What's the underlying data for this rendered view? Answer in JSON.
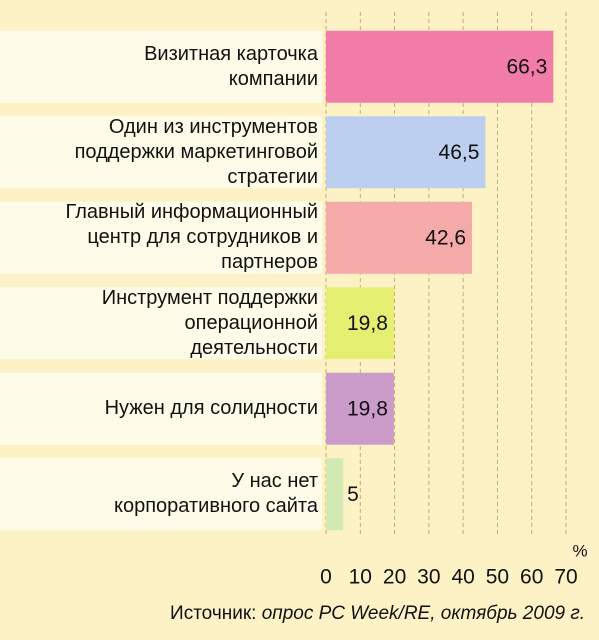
{
  "chart_data": {
    "type": "bar",
    "orientation": "horizontal",
    "categories": [
      "Визитная карточка\nкомпании",
      "Один из инструментов\nподдержки маркетинговой\nстратегии",
      "Главный информационный\nцентр для сотрудников и\nпартнеров",
      "Инструмент поддержки\nоперационной\nдеятельности",
      "Нужен для солидности",
      "У нас нет\nкорпоративного сайта"
    ],
    "values": [
      66.3,
      46.5,
      42.6,
      19.8,
      19.8,
      5
    ],
    "value_labels": [
      "66,3",
      "46,5",
      "42,6",
      "19,8",
      "19,8",
      "5"
    ],
    "colors": [
      "#f27ca8",
      "#bccfee",
      "#f4aaa8",
      "#e4ef72",
      "#cb9bc9",
      "#d2e9b4"
    ],
    "xlim": [
      0,
      70
    ],
    "xticks": [
      0,
      10,
      20,
      30,
      40,
      50,
      60,
      70
    ],
    "x_unit": "%",
    "grid": true,
    "source": "Источник:",
    "source_detail": "опрос PC Week/RE, октябрь 2009 г."
  }
}
